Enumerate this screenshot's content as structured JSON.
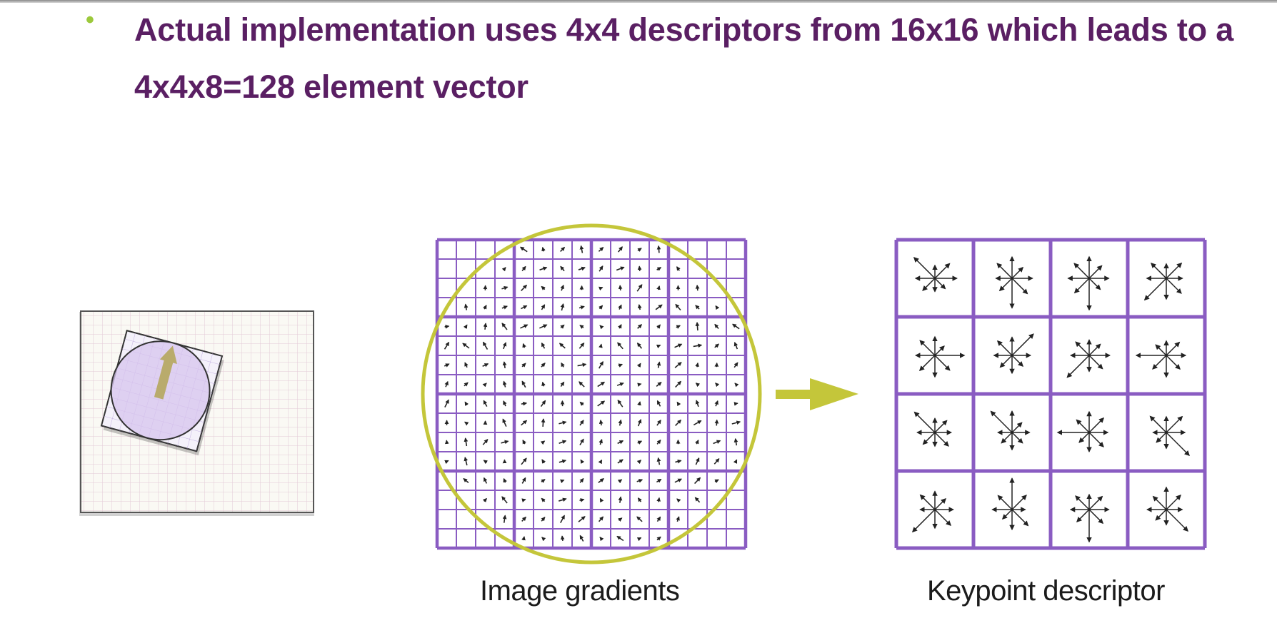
{
  "bullet": {
    "text": "Actual implementation uses 4x4 descriptors from 16x16 which leads to a 4x4x8=128 element vector",
    "marker": "•"
  },
  "figure": {
    "caption_gradients": "Image gradients",
    "caption_descriptor": "Keypoint descriptor",
    "gradient_grid_cells": 16,
    "descriptor_grid_cells": 4,
    "orientation_bins": 8
  },
  "colors": {
    "title": "#5a1f63",
    "bullet": "#9cc93c",
    "grid": "#8a5cc2",
    "circle": "#c4c63a",
    "arrow": "#c4c63a",
    "thumb_circle": "#d7c4ee",
    "thumb_arrow": "#b9ab6c"
  },
  "icons": {
    "flow_arrow": "right-arrow-icon"
  }
}
